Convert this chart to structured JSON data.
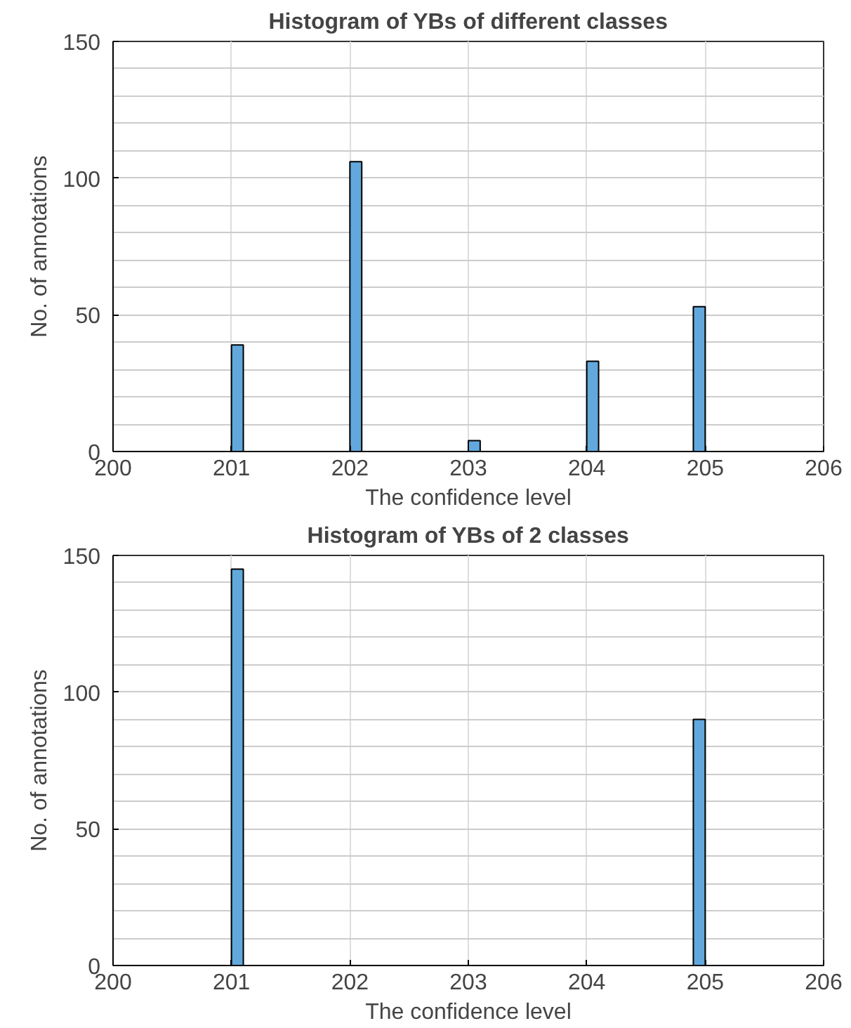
{
  "chart_data": [
    {
      "type": "histogram",
      "title": "Histogram of YBs of different classes",
      "xlabel": "The confidence level",
      "ylabel": "No. of annotations",
      "color": "#62a8dc",
      "bins": [
        201.0,
        201.1,
        201.2,
        201.3,
        201.4,
        201.5,
        201.6,
        201.7,
        201.8,
        201.9,
        202.0,
        202.1,
        202.2,
        202.3,
        202.4,
        202.5,
        202.6,
        202.7,
        202.8,
        202.9,
        203.0,
        203.1,
        203.2,
        203.3,
        203.4,
        203.5,
        203.6,
        203.7,
        203.8,
        203.9,
        204.0,
        204.1,
        204.2,
        204.3,
        204.4,
        204.5,
        204.6,
        204.7,
        204.8,
        204.9,
        205.0
      ],
      "values": [
        39,
        0,
        0,
        0,
        0,
        0,
        0,
        0,
        0,
        0,
        106,
        0,
        0,
        0,
        0,
        0,
        0,
        0,
        0,
        0,
        4,
        0,
        0,
        0,
        0,
        0,
        0,
        0,
        0,
        0,
        33,
        0,
        0,
        0,
        0,
        0,
        0,
        0,
        0,
        53
      ],
      "xlim": [
        200,
        206
      ],
      "xticks": [
        200,
        201,
        202,
        203,
        204,
        205,
        206
      ],
      "ylim": [
        0,
        150
      ],
      "yticks": [
        0,
        50,
        100,
        150
      ],
      "grid": true
    },
    {
      "type": "histogram",
      "title": "Histogram of YBs of 2 classes",
      "xlabel": "The confidence level",
      "ylabel": "No. of annotations",
      "color": "#62a8dc",
      "bins": [
        201.0,
        201.1,
        201.2,
        201.3,
        201.4,
        201.5,
        201.6,
        201.7,
        201.8,
        201.9,
        202.0,
        202.1,
        202.2,
        202.3,
        202.4,
        202.5,
        202.6,
        202.7,
        202.8,
        202.9,
        203.0,
        203.1,
        203.2,
        203.3,
        203.4,
        203.5,
        203.6,
        203.7,
        203.8,
        203.9,
        204.0,
        204.1,
        204.2,
        204.3,
        204.4,
        204.5,
        204.6,
        204.7,
        204.8,
        204.9,
        205.0
      ],
      "values": [
        145,
        0,
        0,
        0,
        0,
        0,
        0,
        0,
        0,
        0,
        0,
        0,
        0,
        0,
        0,
        0,
        0,
        0,
        0,
        0,
        0,
        0,
        0,
        0,
        0,
        0,
        0,
        0,
        0,
        0,
        0,
        0,
        0,
        0,
        0,
        0,
        0,
        0,
        0,
        90
      ],
      "xlim": [
        200,
        206
      ],
      "xticks": [
        200,
        201,
        202,
        203,
        204,
        205,
        206
      ],
      "ylim": [
        0,
        150
      ],
      "yticks": [
        0,
        50,
        100,
        150
      ],
      "grid": true
    }
  ]
}
